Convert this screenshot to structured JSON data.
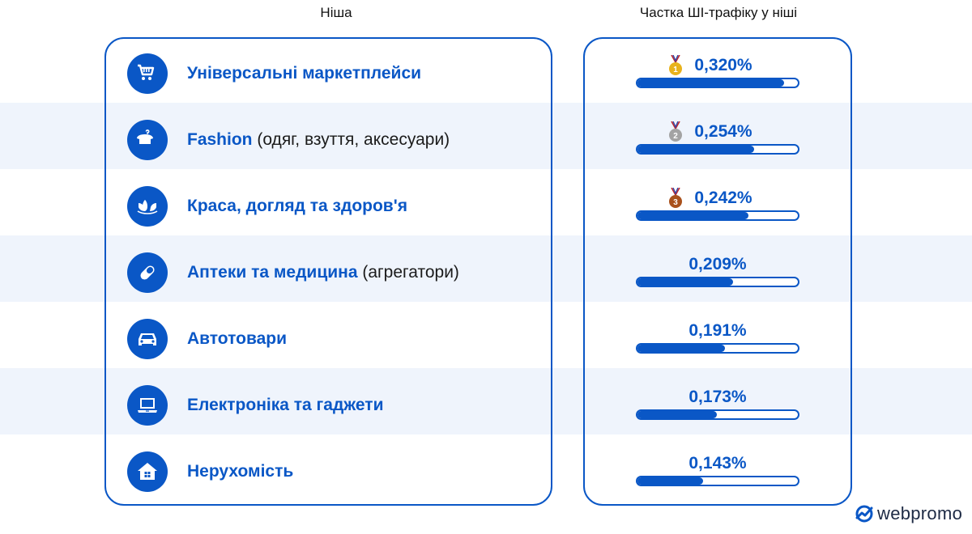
{
  "headers": {
    "niche": "Ніша",
    "share": "Частка ШІ-трафіку у ніші"
  },
  "rows": [
    {
      "icon": "shopping-cart-icon",
      "label_main": "Універсальні маркетплейси",
      "label_sub": "",
      "value": "0,320%",
      "medal": "gold",
      "medal_number": "1"
    },
    {
      "icon": "clothes-hanger-icon",
      "label_main": "Fashion",
      "label_sub": " (одяг, взуття, аксесуари)",
      "value": "0,254%",
      "medal": "silver",
      "medal_number": "2"
    },
    {
      "icon": "lotus-icon",
      "label_main": "Краса, догляд та здоров'я",
      "label_sub": "",
      "value": "0,242%",
      "medal": "bronze",
      "medal_number": "3"
    },
    {
      "icon": "pill-icon",
      "label_main": "Аптеки та медицина",
      "label_sub": " (агрегатори)",
      "value": "0,209%",
      "medal": "",
      "medal_number": ""
    },
    {
      "icon": "car-icon",
      "label_main": "Автотовари",
      "label_sub": "",
      "value": "0,191%",
      "medal": "",
      "medal_number": ""
    },
    {
      "icon": "laptop-icon",
      "label_main": "Електроніка та гаджети",
      "label_sub": "",
      "value": "0,173%",
      "medal": "",
      "medal_number": ""
    },
    {
      "icon": "house-icon",
      "label_main": "Нерухомість",
      "label_sub": "",
      "value": "0,143%",
      "medal": "",
      "medal_number": ""
    }
  ],
  "colors": {
    "accent": "#0a57c6",
    "band": "#eff4fc",
    "gold": "#e8b21c",
    "silver": "#a3a3a3",
    "bronze": "#a9511c"
  },
  "logo": {
    "text": "webpromo",
    "icon": "webpromo-logo-icon"
  },
  "chart_data": {
    "type": "bar",
    "orientation": "horizontal",
    "title": "",
    "xlabel": "Частка ШІ-трафіку у ніші",
    "ylabel": "Ніша",
    "categories": [
      "Універсальні маркетплейси",
      "Fashion (одяг, взуття, аксесуари)",
      "Краса, догляд та здоров'я",
      "Аптеки та медицина (агрегатори)",
      "Автотовари",
      "Електроніка та гаджети",
      "Нерухомість"
    ],
    "values": [
      0.32,
      0.254,
      0.242,
      0.209,
      0.191,
      0.173,
      0.143
    ],
    "value_labels": [
      "0,320%",
      "0,254%",
      "0,242%",
      "0,209%",
      "0,191%",
      "0,173%",
      "0,143%"
    ],
    "unit": "%",
    "ranks_with_medals": {
      "1": "Універсальні маркетплейси",
      "2": "Fashion (одяг, взуття, аксесуари)",
      "3": "Краса, догляд та здоров'я"
    },
    "xlim": [
      0,
      0.35
    ],
    "grid": false,
    "legend": "none"
  }
}
